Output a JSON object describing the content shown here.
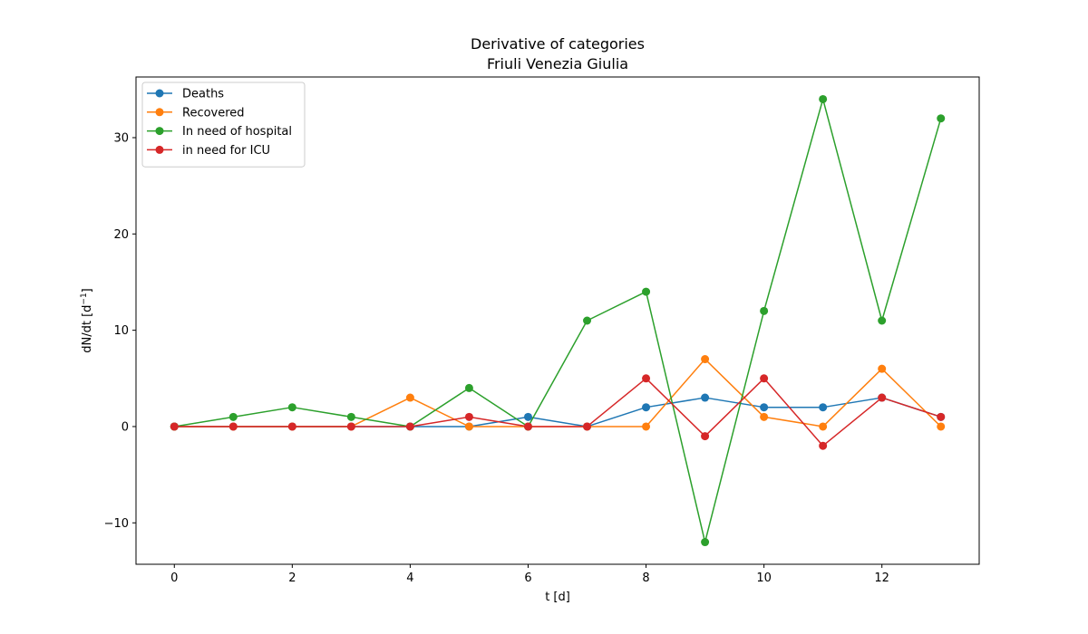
{
  "chart_data": {
    "type": "line",
    "title": "Derivative of categories",
    "subtitle": "Friuli Venezia Giulia",
    "xlabel": "t [d]",
    "ylabel_main": "dN/dt [d",
    "ylabel_sup": "−1",
    "ylabel_end": "]",
    "xlim": [
      -0.65,
      13.65
    ],
    "ylim": [
      -14.3,
      36.3
    ],
    "xticks": [
      0,
      2,
      4,
      6,
      8,
      10,
      12
    ],
    "yticks": [
      -10,
      0,
      10,
      20,
      30
    ],
    "ytick_labels": [
      "−10",
      "0",
      "10",
      "20",
      "30"
    ],
    "grid": false,
    "legend_position": "upper-left",
    "x": [
      0,
      1,
      2,
      3,
      4,
      5,
      6,
      7,
      8,
      9,
      10,
      11,
      12,
      13
    ],
    "series": [
      {
        "name": "Deaths",
        "color": "#1f77b4",
        "values": [
          0,
          0,
          0,
          0,
          0,
          0,
          1,
          0,
          2,
          3,
          2,
          2,
          3,
          1
        ]
      },
      {
        "name": "Recovered",
        "color": "#ff7f0e",
        "values": [
          0,
          0,
          0,
          0,
          3,
          0,
          0,
          0,
          0,
          7,
          1,
          0,
          6,
          0
        ]
      },
      {
        "name": "In need of hospital",
        "color": "#2ca02c",
        "values": [
          0,
          1,
          2,
          1,
          0,
          4,
          0,
          11,
          14,
          -12,
          12,
          34,
          11,
          32
        ]
      },
      {
        "name": "in need for ICU",
        "color": "#d62728",
        "values": [
          0,
          0,
          0,
          0,
          0,
          1,
          0,
          0,
          5,
          -1,
          5,
          -2,
          3,
          1
        ]
      }
    ]
  }
}
